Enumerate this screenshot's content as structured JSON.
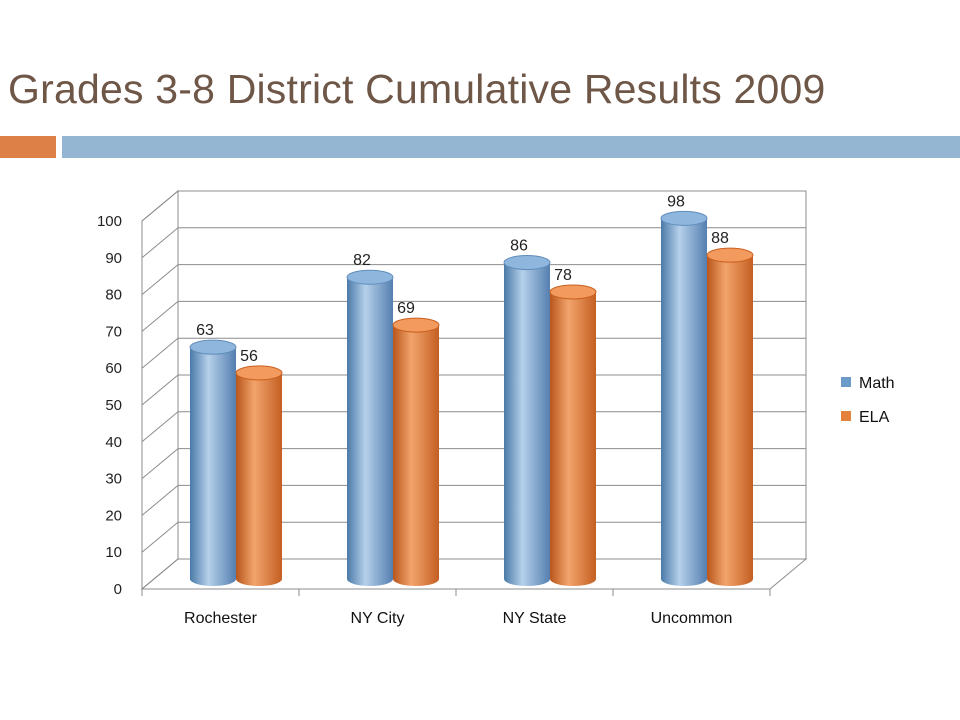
{
  "slide": {
    "title": "Grades 3-8 District Cumulative Results 2009"
  },
  "colors": {
    "title": "#6f5748",
    "accent_orange": "#dd8047",
    "accent_blue": "#94b6d2",
    "math": "#6d9bc9",
    "ela": "#e4813d"
  },
  "chart_data": {
    "type": "bar",
    "title": "",
    "xlabel": "",
    "ylabel": "",
    "categories": [
      "Rochester",
      "NY City",
      "NY State",
      "Uncommon"
    ],
    "series": [
      {
        "name": "Math",
        "values": [
          63,
          82,
          86,
          98
        ]
      },
      {
        "name": "ELA",
        "values": [
          56,
          69,
          78,
          88
        ]
      }
    ],
    "ylim": [
      0,
      100
    ],
    "yticks": [
      0,
      10,
      20,
      30,
      40,
      50,
      60,
      70,
      80,
      90,
      100
    ],
    "grid": true,
    "data_labels": true,
    "legend_position": "right",
    "style": "3d-cylinder"
  }
}
